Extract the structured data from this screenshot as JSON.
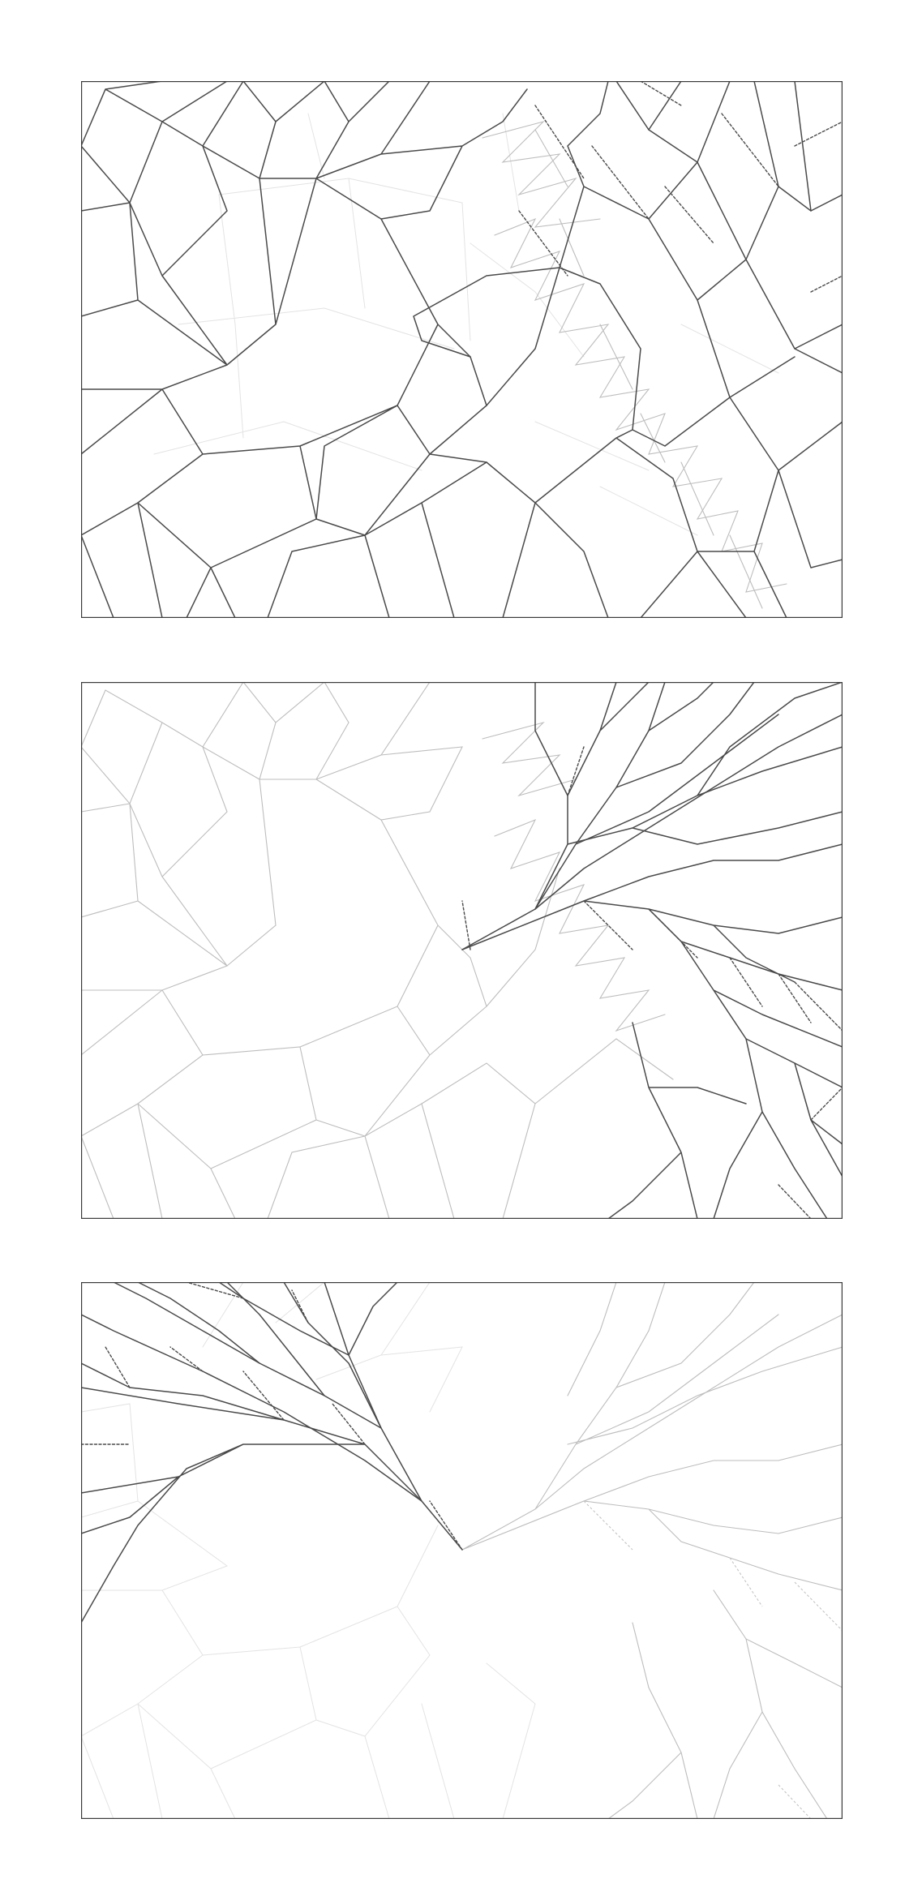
{
  "figure": {
    "panels": [
      {
        "id": "panel-1",
        "highlight": "full-pattern"
      },
      {
        "id": "panel-2",
        "highlight": "upper-right-wedge"
      },
      {
        "id": "panel-3",
        "highlight": "upper-left-wedge"
      }
    ]
  }
}
